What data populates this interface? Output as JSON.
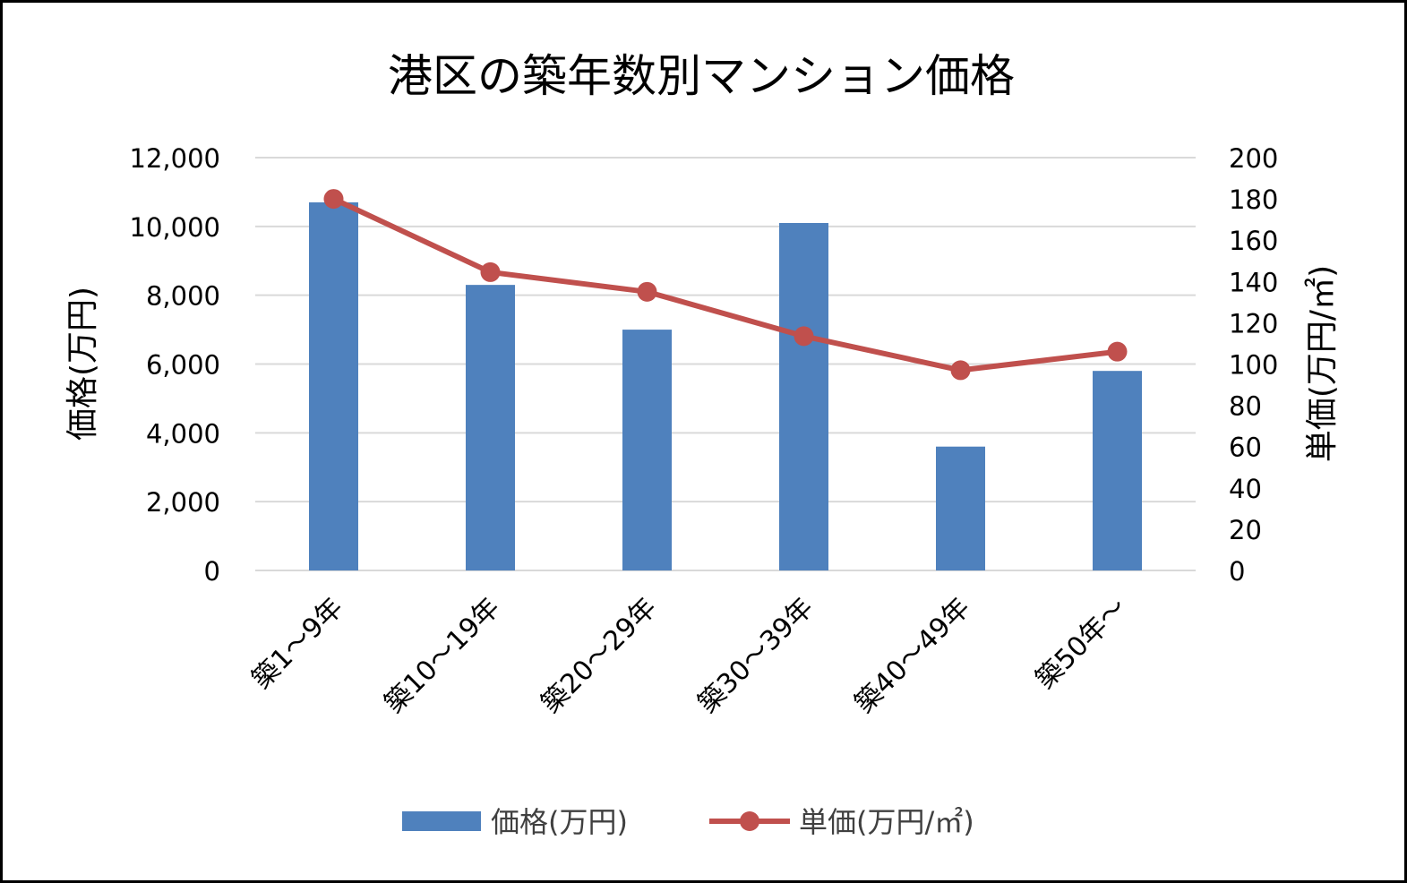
{
  "chart_data": {
    "type": "bar+line",
    "title": "港区の築年数別マンション価格",
    "categories": [
      "築1～9年",
      "築10～19年",
      "築20～29年",
      "築30～39年",
      "築40～49年",
      "築50年～"
    ],
    "series": [
      {
        "name": "価格(万円)",
        "type": "bar",
        "axis": "left",
        "color": "#4f81bd",
        "values": [
          10700,
          8300,
          7000,
          10100,
          3600,
          5800
        ]
      },
      {
        "name": "単価(万円/㎡)",
        "type": "line",
        "axis": "right",
        "color": "#c0504d",
        "values": [
          180,
          144.5,
          135,
          113.5,
          97,
          106
        ]
      }
    ],
    "ylabel_left": "価格(万円)",
    "ylabel_right": "単価(万円/㎡)",
    "ylim_left": [
      0,
      12000
    ],
    "ylim_right": [
      0,
      200
    ],
    "yticks_left": [
      "0",
      "2,000",
      "4,000",
      "6,000",
      "8,000",
      "10,000",
      "12,000"
    ],
    "yticks_right": [
      "0",
      "20",
      "40",
      "60",
      "80",
      "100",
      "120",
      "140",
      "160",
      "180",
      "200"
    ],
    "grid": true,
    "legend_position": "bottom"
  }
}
